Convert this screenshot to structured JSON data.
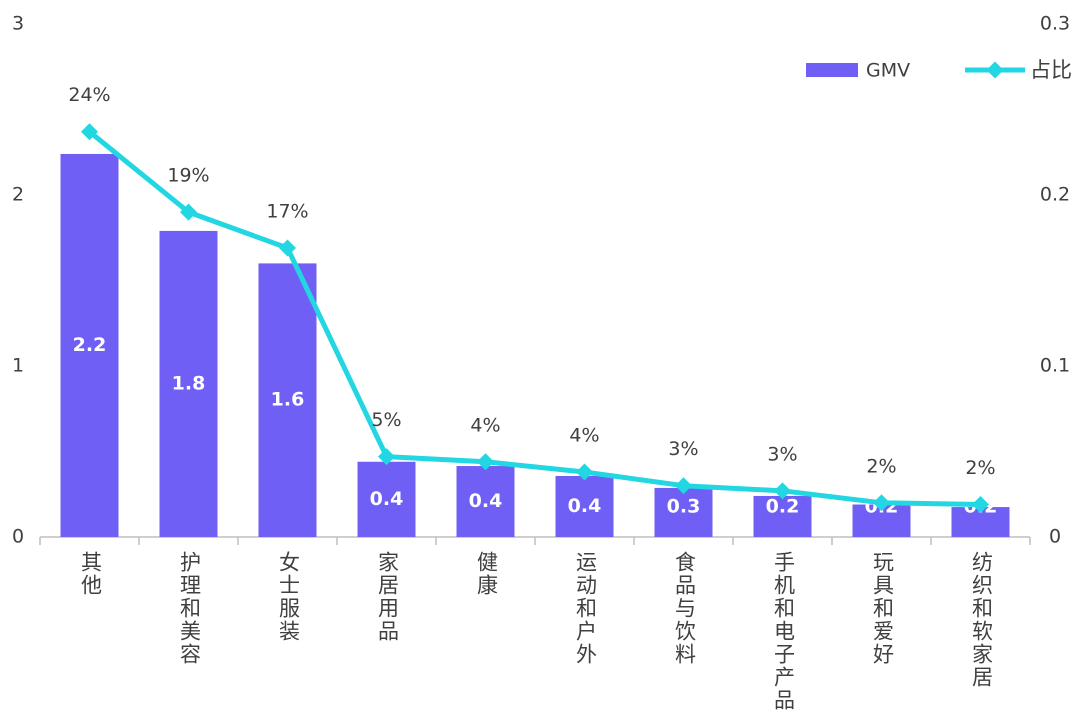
{
  "chart_data": {
    "type": "bar",
    "categories": [
      "其他",
      "护理和美容",
      "女士服装",
      "家居用品",
      "健康",
      "运动和户外",
      "食品与饮料",
      "手机和电子产品",
      "玩具和爱好",
      "纺织和软家居"
    ],
    "series": [
      {
        "name": "GMV",
        "type": "bar",
        "color": "#6f5ff5",
        "values": [
          2.24,
          1.79,
          1.6,
          0.44,
          0.415,
          0.357,
          0.287,
          0.24,
          0.19,
          0.175
        ],
        "value_labels": [
          "2.2",
          "1.8",
          "1.6",
          "0.4",
          "0.4",
          "0.4",
          "0.3",
          "0.2",
          "0.2",
          "0.2"
        ]
      },
      {
        "name": "占比",
        "type": "line",
        "axis": "y2",
        "color": "#22d6e2",
        "values": [
          0.237,
          0.19,
          0.169,
          0.047,
          0.044,
          0.038,
          0.03,
          0.027,
          0.02,
          0.019
        ],
        "value_labels": [
          "24%",
          "19%",
          "17%",
          "5%",
          "4%",
          "4%",
          "3%",
          "3%",
          "2%",
          "2%"
        ]
      }
    ],
    "ylim": [
      0,
      3
    ],
    "yticks": [
      0,
      1,
      2,
      3
    ],
    "y2lim": [
      0,
      0.3
    ],
    "y2ticks": [
      0,
      0.1,
      0.2,
      0.3
    ],
    "legend": "top-right"
  }
}
